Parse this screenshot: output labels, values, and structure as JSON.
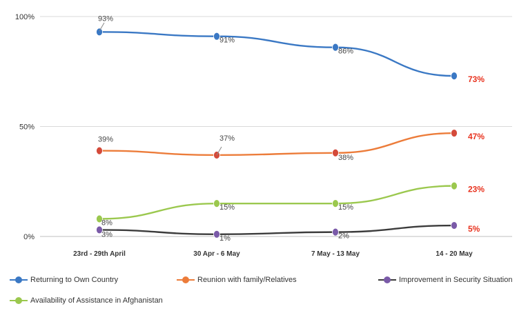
{
  "chart_data": {
    "type": "line",
    "categories": [
      "23rd - 29th April",
      "30 Apr - 6 May",
      "7 May - 13 May",
      "14 - 20 May"
    ],
    "ylim": [
      0,
      100
    ],
    "yticks": [
      0,
      50,
      100
    ],
    "ytick_labels": [
      "0%",
      "50%",
      "100%"
    ],
    "grid": true,
    "legend_position": "bottom",
    "highlight_color": "#e8321e",
    "series": [
      {
        "name": "Returning to Own Country",
        "color": "#3a78c4",
        "values": [
          93,
          91,
          86,
          73
        ],
        "labels": [
          "93%",
          "91%",
          "86%",
          "73%"
        ]
      },
      {
        "name": "Reunion with family/Relatives",
        "color": "#ec7c3a",
        "values": [
          39,
          37,
          38,
          47
        ],
        "labels": [
          "39%",
          "37%",
          "38%",
          "47%"
        ]
      },
      {
        "name": "Improvement in Security Situation",
        "color": "#3b3b3b",
        "values": [
          3,
          1,
          2,
          5
        ],
        "labels": [
          "3%",
          "1%",
          "2%",
          "5%"
        ]
      },
      {
        "name": "Availability of Assistance in Afghanistan",
        "color": "#9bc84e",
        "values": [
          8,
          15,
          15,
          23
        ],
        "labels": [
          "8%",
          "15%",
          "15%",
          "23%"
        ]
      }
    ],
    "marker_colors": [
      "#3a78c4",
      "#d44a3a",
      "#7a5aa8",
      "#9bc84e"
    ]
  }
}
